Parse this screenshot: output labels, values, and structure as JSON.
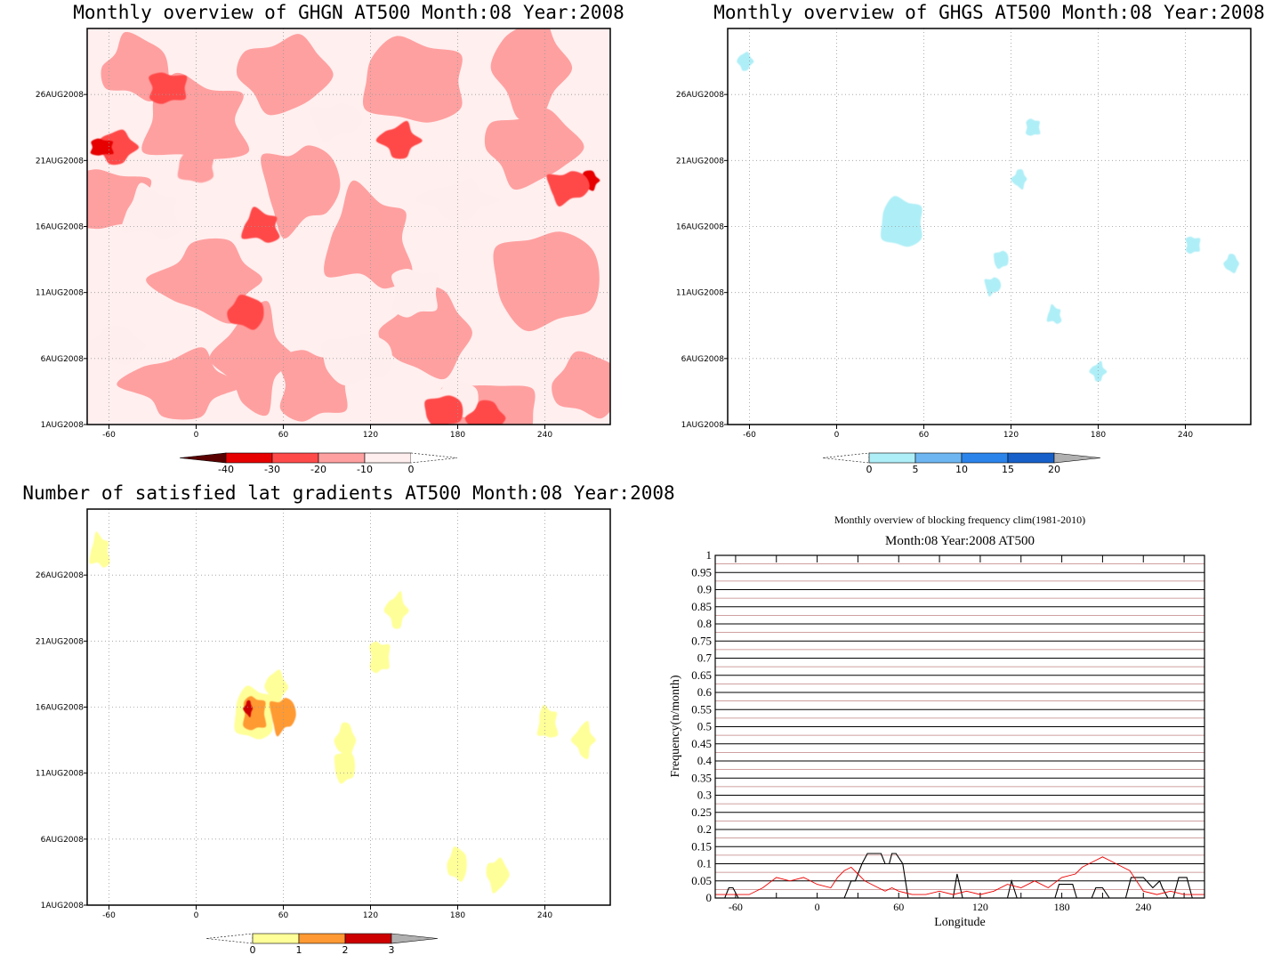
{
  "chart_data": [
    {
      "type": "heatmap",
      "title": "Monthly overview of GHGN AT500 Month:08 Year:2008",
      "x_ticks": [
        "-60",
        "0",
        "60",
        "120",
        "180",
        "240"
      ],
      "y_ticks": [
        "1AUG2008",
        "6AUG2008",
        "11AUG2008",
        "16AUG2008",
        "21AUG2008",
        "26AUG2008"
      ],
      "colorbar": {
        "labels": [
          "-40",
          "-30",
          "-20",
          "-10",
          "0"
        ],
        "colors": [
          "#5a0000",
          "#e60000",
          "#ff4a4a",
          "#ffa0a0",
          "#ffeeee"
        ]
      },
      "blobs": [
        {
          "lon": 0,
          "day": 20.5,
          "value": -10,
          "color": "#ff9f9f"
        },
        {
          "lon": -55,
          "day": 22,
          "value": -25,
          "color": "#ff4a4a"
        },
        {
          "lon": -65,
          "day": 22,
          "value": -35,
          "color": "#e60000"
        },
        {
          "lon": 270,
          "day": 19.5,
          "value": -35,
          "color": "#e60000"
        },
        {
          "lon": 255,
          "day": 19,
          "value": -25,
          "color": "#ff4a4a"
        },
        {
          "lon": 45,
          "day": 16,
          "value": -25,
          "color": "#ff4a4a"
        },
        {
          "lon": 140,
          "day": 22.5,
          "value": -25,
          "color": "#ff4a4a"
        },
        {
          "lon": -20,
          "day": 26.5,
          "value": -25,
          "color": "#ff4a4a"
        },
        {
          "lon": 200,
          "day": 1.5,
          "value": -25,
          "color": "#ff4a4a"
        },
        {
          "lon": 170,
          "day": 2,
          "value": -25,
          "color": "#ff4a4a"
        },
        {
          "lon": 35,
          "day": 9.5,
          "value": -25,
          "color": "#ff4a4a"
        }
      ]
    },
    {
      "type": "heatmap",
      "title": "Monthly overview of GHGS AT500 Month:08 Year:2008",
      "x_ticks": [
        "-60",
        "0",
        "60",
        "120",
        "180",
        "240"
      ],
      "y_ticks": [
        "1AUG2008",
        "6AUG2008",
        "11AUG2008",
        "16AUG2008",
        "21AUG2008",
        "26AUG2008"
      ],
      "colorbar": {
        "labels": [
          "0",
          "5",
          "10",
          "15",
          "20"
        ],
        "colors": [
          "#aeeef7",
          "#6eb6f2",
          "#2b84ea",
          "#1760c9",
          "#b0b0b0"
        ]
      },
      "blobs": [
        {
          "lon": 45,
          "day": 16.3,
          "value": 2,
          "color": "#aeeef7"
        },
        {
          "lon": -63,
          "day": 28.5,
          "value": 2,
          "color": "#aeeef7"
        },
        {
          "lon": 135,
          "day": 23.5,
          "value": 2,
          "color": "#aeeef7"
        },
        {
          "lon": 126,
          "day": 19.6,
          "value": 2,
          "color": "#aeeef7"
        },
        {
          "lon": 107,
          "day": 11.5,
          "value": 2,
          "color": "#aeeef7"
        },
        {
          "lon": 150,
          "day": 9.3,
          "value": 2,
          "color": "#aeeef7"
        },
        {
          "lon": 180,
          "day": 5,
          "value": 2,
          "color": "#aeeef7"
        },
        {
          "lon": 245,
          "day": 14.6,
          "value": 2,
          "color": "#aeeef7"
        },
        {
          "lon": 272,
          "day": 13.2,
          "value": 2,
          "color": "#aeeef7"
        },
        {
          "lon": 113,
          "day": 13.5,
          "value": 2,
          "color": "#aeeef7"
        }
      ]
    },
    {
      "type": "heatmap",
      "title": "Number of satisfied lat gradients AT500 Month:08 Year:2008",
      "x_ticks": [
        "-60",
        "0",
        "60",
        "120",
        "180",
        "240"
      ],
      "y_ticks": [
        "1AUG2008",
        "6AUG2008",
        "11AUG2008",
        "16AUG2008",
        "21AUG2008",
        "26AUG2008"
      ],
      "colorbar": {
        "labels": [
          "0",
          "1",
          "2",
          "3"
        ],
        "colors": [
          "#ffff99",
          "#ff9933",
          "#cc0000",
          "#b0b0b0"
        ]
      },
      "blobs": [
        {
          "lon": 40,
          "day": 15.5,
          "value": 1,
          "color": "#ffff99"
        },
        {
          "lon": 55,
          "day": 17.5,
          "value": 1,
          "color": "#ffff99"
        },
        {
          "lon": 40,
          "day": 15.5,
          "value": 2,
          "color": "#ff9933"
        },
        {
          "lon": 36,
          "day": 15.9,
          "value": 3,
          "color": "#cc0000"
        },
        {
          "lon": 59,
          "day": 15.4,
          "value": 2,
          "color": "#ff9933"
        },
        {
          "lon": -66,
          "day": 27.8,
          "value": 1,
          "color": "#ffff99"
        },
        {
          "lon": 138,
          "day": 23.3,
          "value": 1,
          "color": "#ffff99"
        },
        {
          "lon": 126,
          "day": 19.8,
          "value": 1,
          "color": "#ffff99"
        },
        {
          "lon": 103,
          "day": 13.5,
          "value": 1,
          "color": "#ffff99"
        },
        {
          "lon": 102,
          "day": 11.5,
          "value": 1,
          "color": "#ffff99"
        },
        {
          "lon": 180,
          "day": 4.1,
          "value": 1,
          "color": "#ffff99"
        },
        {
          "lon": 207,
          "day": 3.3,
          "value": 1,
          "color": "#ffff99"
        },
        {
          "lon": 242,
          "day": 14.8,
          "value": 1,
          "color": "#ffff99"
        },
        {
          "lon": 267,
          "day": 13.5,
          "value": 1,
          "color": "#ffff99"
        }
      ]
    },
    {
      "type": "line",
      "title": "Monthly overview of blocking frequency clim(1981-2010)",
      "subtitle": "Month:08 Year:2008  AT500",
      "xlabel": "Longitude",
      "ylabel": "Frequency(n/month)",
      "xlim": [
        -75,
        285
      ],
      "ylim": [
        0,
        1
      ],
      "x_ticks": [
        "-60",
        "0",
        "60",
        "120",
        "180",
        "240"
      ],
      "y_ticks": [
        "0",
        "0.05",
        "0.1",
        "0.15",
        "0.2",
        "0.25",
        "0.3",
        "0.35",
        "0.4",
        "0.45",
        "0.5",
        "0.55",
        "0.6",
        "0.65",
        "0.7",
        "0.75",
        "0.8",
        "0.85",
        "0.9",
        "0.95",
        "1"
      ],
      "series": [
        {
          "color": "#000000",
          "x": [
            -75,
            -68,
            -65,
            -62,
            -58,
            0,
            20,
            25,
            28,
            33,
            37,
            42,
            47,
            50,
            53,
            55,
            58,
            63,
            67,
            100,
            103,
            107,
            140,
            143,
            147,
            175,
            178,
            188,
            191,
            202,
            205,
            210,
            215,
            227,
            231,
            240,
            247,
            252,
            254,
            258,
            262,
            266,
            272,
            276,
            285
          ],
          "y": [
            0,
            0,
            0.03,
            0.03,
            0,
            0,
            0,
            0.05,
            0.05,
            0.1,
            0.13,
            0.13,
            0.13,
            0.1,
            0.1,
            0.13,
            0.13,
            0.1,
            0,
            0,
            0.07,
            0,
            0,
            0.05,
            0,
            0,
            0.04,
            0.04,
            0,
            0,
            0.03,
            0.03,
            0,
            0,
            0.06,
            0.06,
            0.03,
            0.05,
            0.03,
            0,
            0,
            0.06,
            0.06,
            0,
            0
          ]
        },
        {
          "color": "#ee0000",
          "x": [
            -75,
            -60,
            -50,
            -40,
            -30,
            -20,
            -10,
            0,
            10,
            15,
            20,
            25,
            30,
            35,
            40,
            45,
            50,
            55,
            60,
            70,
            80,
            90,
            100,
            110,
            120,
            130,
            140,
            150,
            160,
            170,
            180,
            190,
            195,
            200,
            205,
            210,
            215,
            220,
            225,
            230,
            235,
            240,
            250,
            260,
            270,
            285
          ],
          "y": [
            0.01,
            0.01,
            0.01,
            0.03,
            0.06,
            0.05,
            0.06,
            0.04,
            0.03,
            0.06,
            0.08,
            0.09,
            0.07,
            0.05,
            0.04,
            0.03,
            0.02,
            0.03,
            0.02,
            0.01,
            0.01,
            0.02,
            0.01,
            0.02,
            0.01,
            0.02,
            0.04,
            0.03,
            0.05,
            0.03,
            0.06,
            0.07,
            0.09,
            0.1,
            0.11,
            0.12,
            0.11,
            0.1,
            0.09,
            0.08,
            0.05,
            0.02,
            0.01,
            0.02,
            0.01,
            0.01
          ]
        }
      ]
    }
  ]
}
